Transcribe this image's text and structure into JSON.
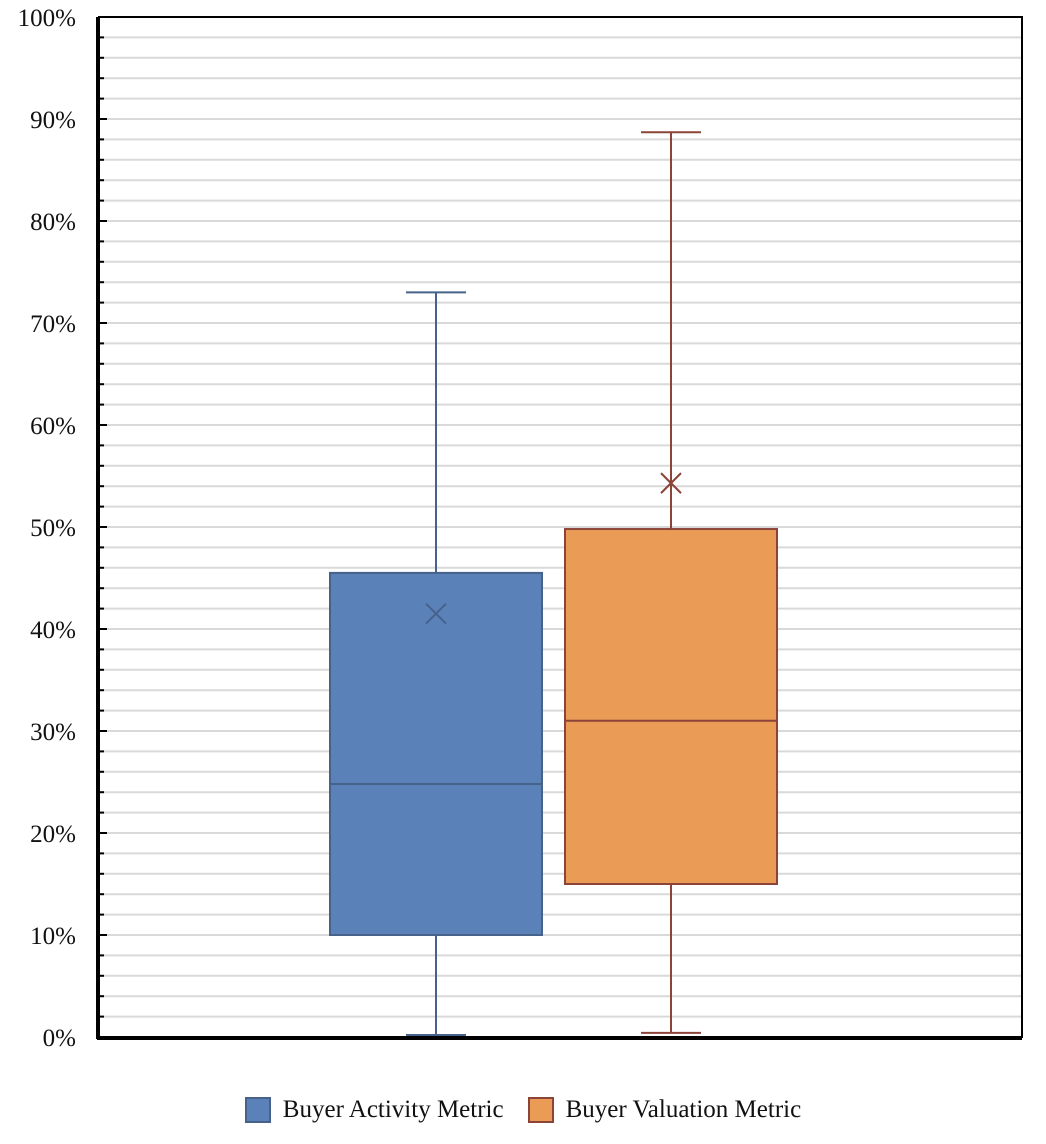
{
  "chart_data": {
    "type": "box",
    "title": "",
    "xlabel": "",
    "ylabel": "",
    "ylim": [
      0,
      100
    ],
    "y_tick_format": "percent",
    "y_ticks": [
      "0%",
      "10%",
      "20%",
      "30%",
      "40%",
      "50%",
      "60%",
      "70%",
      "80%",
      "90%",
      "100%"
    ],
    "grid": "horizontal",
    "legend_placement": "bottom",
    "series": [
      {
        "name": "Buyer Activity Metric",
        "color": "#5b82b8",
        "edge_color": "#46618a",
        "min": 0.2,
        "q1": 10.0,
        "median": 24.8,
        "q3": 45.5,
        "max": 73.0,
        "mean": 41.5
      },
      {
        "name": "Buyer Valuation Metric",
        "color": "#ea9c57",
        "edge_color": "#8c4338",
        "min": 0.4,
        "q1": 15.0,
        "median": 31.0,
        "q3": 49.8,
        "max": 88.7,
        "mean": 54.3
      }
    ]
  }
}
